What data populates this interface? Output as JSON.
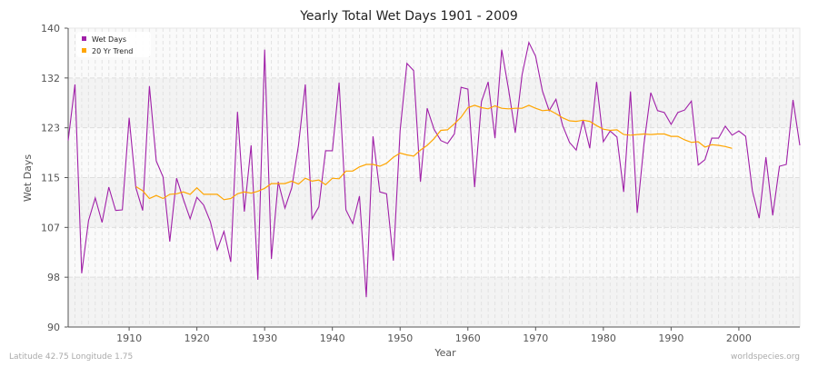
{
  "chart_data": {
    "type": "line",
    "title": "Yearly Total Wet Days 1901 - 2009",
    "xlabel": "Year",
    "ylabel": "Wet Days",
    "xlim": [
      1901,
      2009
    ],
    "ylim": [
      90,
      140
    ],
    "y_ticks": [
      90,
      98,
      107,
      115,
      123,
      132,
      140
    ],
    "x_ticks": [
      1910,
      1920,
      1930,
      1940,
      1950,
      1960,
      1970,
      1980,
      1990,
      2000
    ],
    "grid": true,
    "legend_position": "top-left",
    "series": [
      {
        "name": "Wet Days",
        "color": "#a020a8",
        "x_start": 1901,
        "values": [
          121.2,
          130.6,
          99.0,
          107.8,
          111.6,
          107.5,
          113.4,
          109.5,
          109.6,
          125.0,
          113.3,
          109.5,
          130.3,
          117.8,
          115.1,
          104.3,
          114.9,
          111.4,
          108.1,
          111.7,
          110.4,
          107.6,
          102.9,
          106.0,
          100.9,
          126.0,
          109.3,
          120.4,
          97.9,
          136.4,
          101.4,
          114.3,
          109.9,
          113.3,
          120.4,
          130.6,
          108.1,
          110.1,
          119.5,
          119.5,
          130.9,
          109.6,
          107.3,
          111.9,
          95.0,
          121.9,
          112.6,
          112.3,
          101.1,
          122.8,
          134.1,
          132.9,
          114.3,
          126.6,
          123.1,
          121.2,
          120.7,
          122.3,
          130.1,
          129.8,
          113.4,
          127.7,
          131.0,
          121.6,
          136.4,
          129.8,
          122.5,
          132.2,
          137.6,
          135.3,
          129.5,
          126.2,
          128.1,
          123.7,
          120.9,
          119.6,
          124.6,
          119.9,
          131.0,
          121.0,
          122.8,
          121.8,
          112.6,
          129.4,
          109.1,
          120.7,
          129.2,
          126.2,
          125.9,
          123.9,
          125.9,
          126.3,
          127.8,
          117.1,
          118.0,
          121.6,
          121.6,
          123.6,
          122.1,
          122.8,
          121.9,
          112.8,
          108.2,
          118.4,
          108.7,
          116.9,
          117.2,
          128.0,
          120.4
        ]
      },
      {
        "name": "20 Yr Trend",
        "color": "#ffa500",
        "x_start": 1911,
        "values": [
          113.5,
          112.8,
          111.5,
          112.0,
          111.5,
          112.2,
          112.3,
          112.6,
          112.2,
          113.3,
          112.2,
          112.2,
          112.2,
          111.3,
          111.5,
          112.3,
          112.6,
          112.4,
          112.7,
          113.2,
          114.0,
          114.0,
          114.0,
          114.4,
          113.9,
          114.9,
          114.4,
          114.6,
          113.8,
          114.9,
          114.8,
          116.1,
          116.1,
          116.8,
          117.2,
          117.2,
          116.9,
          117.4,
          118.4,
          119.1,
          118.8,
          118.6,
          119.6,
          120.4,
          121.5,
          122.9,
          123.0,
          124.0,
          125.1,
          126.7,
          127.1,
          126.7,
          126.5,
          127.0,
          126.6,
          126.5,
          126.6,
          126.6,
          127.1,
          126.6,
          126.2,
          126.3,
          125.7,
          125.0,
          124.5,
          124.4,
          124.6,
          124.4,
          123.7,
          123.1,
          122.9,
          123.0,
          122.2,
          122.1,
          122.2,
          122.3,
          122.2,
          122.3,
          122.3,
          121.9,
          121.9,
          121.3,
          120.9,
          121.0,
          120.1,
          120.5,
          120.4,
          120.2,
          119.9
        ]
      }
    ]
  },
  "footer": {
    "location": "Latitude 42.75 Longitude 1.75",
    "source": "worldspecies.org"
  }
}
